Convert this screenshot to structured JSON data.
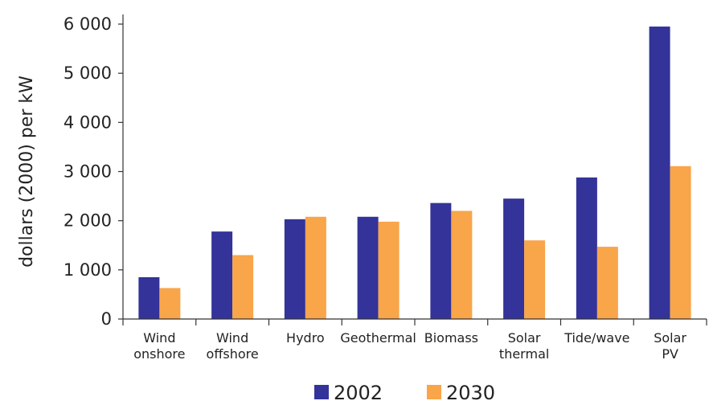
{
  "chart_data": {
    "type": "bar",
    "title": "",
    "xlabel": "",
    "ylabel": "dollars (2000) per kW",
    "ylim": [
      0,
      6000
    ],
    "yticks": [
      {
        "value": 0,
        "label": "0"
      },
      {
        "value": 1000,
        "label": "1 000"
      },
      {
        "value": 2000,
        "label": "2 000"
      },
      {
        "value": 3000,
        "label": "3 000"
      },
      {
        "value": 4000,
        "label": "4 000"
      },
      {
        "value": 5000,
        "label": "5 000"
      },
      {
        "value": 6000,
        "label": "6 000"
      }
    ],
    "grid": false,
    "legend_position": "bottom",
    "categories": [
      [
        "Wind",
        "onshore"
      ],
      [
        "Wind",
        "offshore"
      ],
      [
        "Hydro"
      ],
      [
        "Geothermal"
      ],
      [
        "Biomass"
      ],
      [
        "Solar",
        "thermal"
      ],
      [
        "Tide/wave"
      ],
      [
        "Solar",
        "PV"
      ]
    ],
    "series": [
      {
        "name": "2002",
        "color": "#333399",
        "values": [
          850,
          1780,
          2030,
          2080,
          2360,
          2450,
          2880,
          5950
        ]
      },
      {
        "name": "2030",
        "color": "#F9A54A",
        "values": [
          630,
          1300,
          2080,
          1980,
          2200,
          1600,
          1470,
          3110
        ]
      }
    ]
  }
}
